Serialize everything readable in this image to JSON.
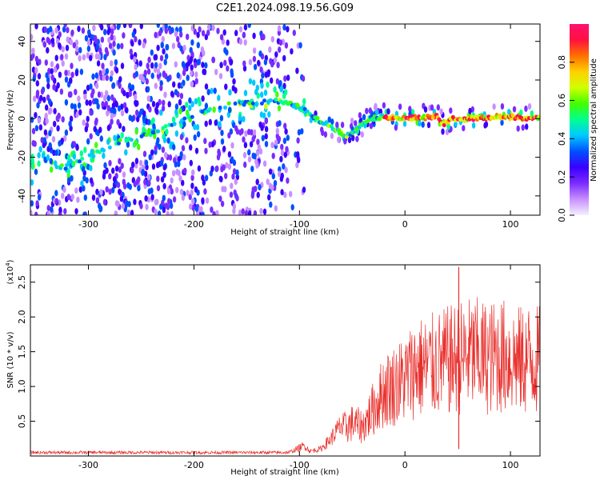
{
  "title": "C2E1.2024.098.19.56.G09",
  "colors": {
    "snr_line": "#e8302c",
    "gradient": [
      "#f5f0ff",
      "#c890ff",
      "#7b2cff",
      "#3a00ff",
      "#0050ff",
      "#00c8ff",
      "#00ff90",
      "#40ff00",
      "#d0ff00",
      "#ffd000",
      "#ff7000",
      "#ff1040",
      "#ff1070"
    ]
  },
  "chart_data": [
    {
      "type": "heatmap",
      "title": "C2E1.2024.098.19.56.G09",
      "xlabel": "Height of straight line (km)",
      "ylabel": "Frequency (Hz)",
      "xlim": [
        -355,
        128
      ],
      "ylim": [
        -50,
        49
      ],
      "x_ticks": [
        -300,
        -200,
        -100,
        0,
        100
      ],
      "x_tick_labels": [
        "-300",
        "-200",
        "-100",
        "0",
        "100"
      ],
      "y_ticks": [
        -40,
        -20,
        0,
        20,
        40
      ],
      "y_tick_labels": [
        "-40",
        "-20",
        "0",
        "20",
        "40"
      ],
      "ridge": {
        "x": [
          -320,
          -300,
          -270,
          -240,
          -200,
          -160,
          -120,
          -100,
          -85,
          -70,
          -55,
          -45,
          -35,
          -20,
          0,
          30,
          37,
          45,
          60,
          100,
          128
        ],
        "y": [
          -25,
          -20,
          -12,
          -8,
          2,
          8,
          9,
          6,
          0,
          -4,
          -9,
          -5,
          0,
          1,
          0,
          1,
          -3,
          0,
          0,
          1,
          0
        ]
      },
      "colorbar": {
        "label": "Normalized spectral amplitude",
        "range": [
          0,
          1
        ],
        "ticks": [
          0.0,
          0.2,
          0.4,
          0.6,
          0.8
        ],
        "tick_labels": [
          "0.0",
          "0.2",
          "0.4",
          "0.6",
          "0.8"
        ]
      }
    },
    {
      "type": "line",
      "xlabel": "Height of straight line (km)",
      "ylabel": "SNR (10 * v/v)",
      "multiplier_label": "(x10",
      "multiplier_exp": "4",
      "multiplier_close": ")",
      "xlim": [
        -355,
        128
      ],
      "ylim": [
        0,
        2.75
      ],
      "x_ticks": [
        -300,
        -200,
        -100,
        0,
        100
      ],
      "x_tick_labels": [
        "-300",
        "-200",
        "-100",
        "0",
        "100"
      ],
      "y_ticks": [
        0.5,
        1.0,
        1.5,
        2.0,
        2.5
      ],
      "y_tick_labels": [
        "0.5",
        "1.0",
        "1.5",
        "2.0",
        "2.5"
      ],
      "series": [
        {
          "name": "SNR",
          "x": [
            -355,
            -300,
            -200,
            -110,
            -95,
            -90,
            -80,
            -70,
            -60,
            -50,
            -40,
            -30,
            -20,
            -10,
            0,
            10,
            20,
            30,
            40,
            50,
            60,
            70,
            80,
            90,
            100,
            110,
            120,
            128
          ],
          "envelope": [
            0.05,
            0.05,
            0.05,
            0.05,
            0.15,
            0.07,
            0.1,
            0.25,
            0.45,
            0.55,
            0.5,
            0.8,
            1.1,
            1.2,
            1.3,
            1.5,
            1.5,
            1.55,
            1.6,
            1.65,
            1.7,
            1.7,
            1.65,
            1.7,
            1.65,
            1.6,
            1.65,
            1.6
          ],
          "spike": {
            "x": 51,
            "y": 2.72
          }
        }
      ]
    }
  ]
}
